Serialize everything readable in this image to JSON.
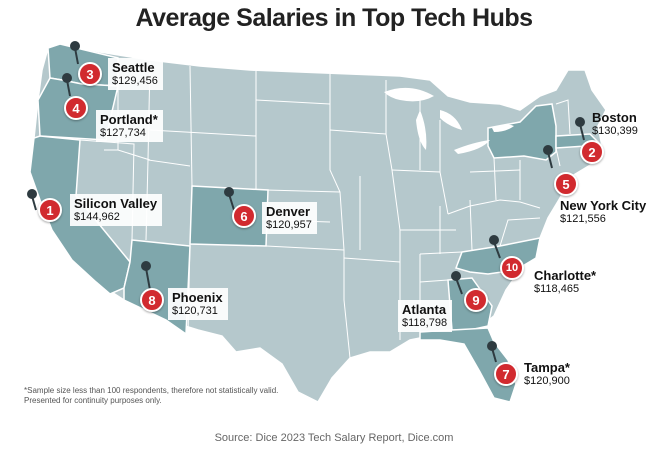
{
  "title": "Average Salaries in Top Tech Hubs",
  "footnote": "*Sample size less than 100 respondents, therefore not statistically valid. Presented for continuity purposes only.",
  "source": "Source: Dice 2023 Tech Salary Report, Dice.com",
  "colors": {
    "land": "#b5c8cc",
    "highlight": "#7fa7ac",
    "state_border": "#ffffff",
    "marker": "#d12a2f",
    "pin": "#2e3b40"
  },
  "hubs": [
    {
      "rank": "1",
      "city": "Silicon Valley",
      "salary": "$144,962"
    },
    {
      "rank": "2",
      "city": "Boston",
      "salary": "$130,399"
    },
    {
      "rank": "3",
      "city": "Seattle",
      "salary": "$129,456"
    },
    {
      "rank": "4",
      "city": "Portland*",
      "salary": "$127,734"
    },
    {
      "rank": "5",
      "city": "New York City",
      "salary": "$121,556"
    },
    {
      "rank": "6",
      "city": "Denver",
      "salary": "$120,957"
    },
    {
      "rank": "7",
      "city": "Tampa*",
      "salary": "$120,900"
    },
    {
      "rank": "8",
      "city": "Phoenix",
      "salary": "$120,731"
    },
    {
      "rank": "9",
      "city": "Atlanta",
      "salary": "$118,798"
    },
    {
      "rank": "10",
      "city": "Charlotte*",
      "salary": "$118,465"
    }
  ]
}
